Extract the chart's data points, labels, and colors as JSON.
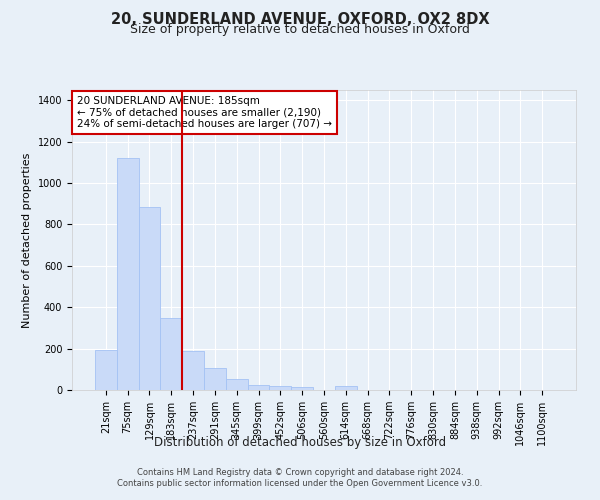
{
  "title": "20, SUNDERLAND AVENUE, OXFORD, OX2 8DX",
  "subtitle": "Size of property relative to detached houses in Oxford",
  "xlabel": "Distribution of detached houses by size in Oxford",
  "ylabel": "Number of detached properties",
  "categories": [
    "21sqm",
    "75sqm",
    "129sqm",
    "183sqm",
    "237sqm",
    "291sqm",
    "345sqm",
    "399sqm",
    "452sqm",
    "506sqm",
    "560sqm",
    "614sqm",
    "668sqm",
    "722sqm",
    "776sqm",
    "830sqm",
    "884sqm",
    "938sqm",
    "992sqm",
    "1046sqm",
    "1100sqm"
  ],
  "bar_heights": [
    195,
    1120,
    885,
    350,
    190,
    108,
    55,
    25,
    20,
    15,
    0,
    18,
    0,
    0,
    0,
    0,
    0,
    0,
    0,
    0,
    0
  ],
  "bar_color": "#c9daf8",
  "bar_edge_color": "#a4c2f4",
  "vline_color": "#cc0000",
  "vline_pos": 3.5,
  "annotation_text": "20 SUNDERLAND AVENUE: 185sqm\n← 75% of detached houses are smaller (2,190)\n24% of semi-detached houses are larger (707) →",
  "annotation_box_color": "#ffffff",
  "annotation_box_edge": "#cc0000",
  "ylim": [
    0,
    1450
  ],
  "yticks": [
    0,
    200,
    400,
    600,
    800,
    1000,
    1200,
    1400
  ],
  "bg_color": "#e8f0f8",
  "plot_bg_color": "#e8f0f8",
  "grid_color": "#ffffff",
  "footnote": "Contains HM Land Registry data © Crown copyright and database right 2024.\nContains public sector information licensed under the Open Government Licence v3.0.",
  "title_fontsize": 10.5,
  "subtitle_fontsize": 9,
  "xlabel_fontsize": 8.5,
  "ylabel_fontsize": 8,
  "tick_fontsize": 7,
  "annot_fontsize": 7.5
}
